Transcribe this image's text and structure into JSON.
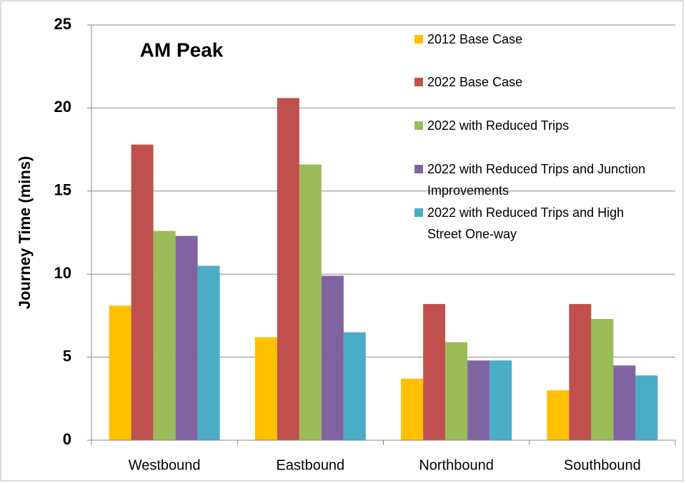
{
  "chart_data": {
    "type": "bar",
    "title": "AM Peak",
    "y_label": "Journey Time (mins)",
    "categories": [
      "Westbound",
      "Eastbound",
      "Northbound",
      "Southbound"
    ],
    "series": [
      {
        "name": "2012 Base Case",
        "color": "#ffc000",
        "values": [
          8.1,
          6.2,
          3.7,
          3.0
        ]
      },
      {
        "name": "2022 Base Case",
        "color": "#c0504d",
        "values": [
          17.8,
          20.6,
          8.2,
          8.2
        ]
      },
      {
        "name": "2022 with Reduced Trips",
        "color": "#9bbb59",
        "values": [
          12.6,
          16.6,
          5.9,
          7.3
        ]
      },
      {
        "name": "2022 with Reduced Trips and Junction Improvements",
        "color": "#8064a2",
        "values": [
          12.3,
          9.9,
          4.8,
          4.5
        ]
      },
      {
        "name": "2022 with Reduced Trips and High Street One-way",
        "color": "#4bacc6",
        "values": [
          10.5,
          6.5,
          4.8,
          3.9
        ]
      }
    ],
    "ylim": [
      0,
      25
    ],
    "yticks": [
      0,
      5,
      10,
      15,
      20,
      25
    ],
    "grid": true
  }
}
